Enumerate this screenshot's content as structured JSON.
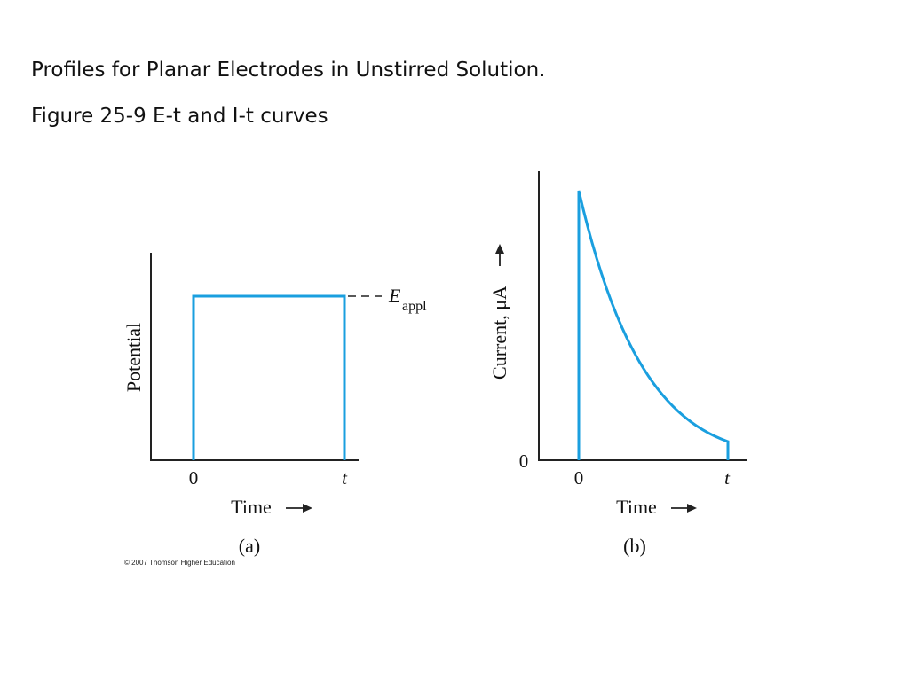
{
  "slide": {
    "title": "Profiles for Planar Electrodes in Unstirred Solution.",
    "caption": "Figure 25-9 E-t and I-t curves"
  },
  "colors": {
    "curve": "#1a9fdf",
    "axis": "#222222",
    "text": "#111111"
  },
  "chart_data": [
    {
      "panel_label": "(a)",
      "type": "line",
      "ylabel": "Potential",
      "xlabel": "Time",
      "x_ticks": [
        "0",
        "t"
      ],
      "annotation": {
        "symbol": "E",
        "subscript": "appl"
      },
      "shape": "step pulse: potential jumps from 0 to E_appl at time 0, holds constant, returns to 0 at time t"
    },
    {
      "panel_label": "(b)",
      "type": "line",
      "ylabel": "Current, μA",
      "xlabel": "Time",
      "x_ticks": [
        "0",
        "t"
      ],
      "y_ticks": [
        "0"
      ],
      "shape": "current spikes at time 0 then decays toward a small value, dropping to 0 at time t"
    }
  ],
  "credit": "© 2007 Thomson Higher Education"
}
